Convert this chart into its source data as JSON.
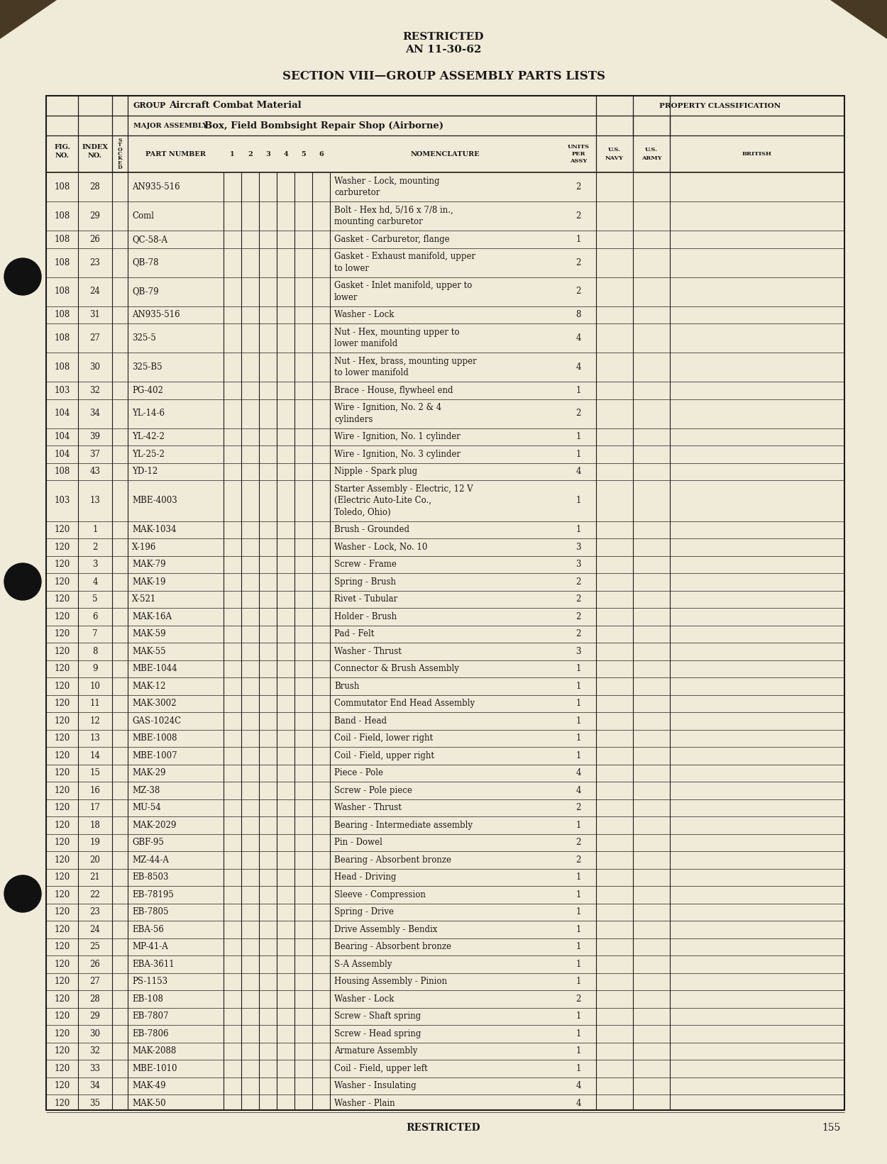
{
  "bg_color": "#f0ead8",
  "page_bg": "#d4c9a8",
  "title1": "RESTRICTED",
  "title2": "AN 11-30-62",
  "section_title": "SECTION VIII—GROUP ASSEMBLY PARTS LISTS",
  "group_label": "GROUP",
  "group_value": "Aircraft Combat Material",
  "major_assembly_label": "MAJOR ASSEMBLY",
  "major_assembly_value": "Box, Field Bombsight Repair Shop (Airborne)",
  "property_class_header": "PROPERTY CLASSIFICATION",
  "footer_text": "RESTRICTED",
  "page_number": "155",
  "rows": [
    [
      "108",
      "28",
      "AN935-516",
      [
        "Washer - Lock, mounting",
        "carburetor"
      ],
      "2"
    ],
    [
      "108",
      "29",
      "Coml",
      [
        "Bolt - Hex hd, 5/16 x 7/8 in.,",
        "mounting carburetor"
      ],
      "2"
    ],
    [
      "108",
      "26",
      "QC-58-A",
      [
        "Gasket - Carburetor, flange"
      ],
      "1"
    ],
    [
      "108",
      "23",
      "QB-78",
      [
        "Gasket - Exhaust manifold, upper",
        "to lower"
      ],
      "2"
    ],
    [
      "108",
      "24",
      "QB-79",
      [
        "Gasket - Inlet manifold, upper to",
        "lower"
      ],
      "2"
    ],
    [
      "108",
      "31",
      "AN935-516",
      [
        "Washer - Lock"
      ],
      "8"
    ],
    [
      "108",
      "27",
      "325-5",
      [
        "Nut - Hex, mounting upper to",
        "lower manifold"
      ],
      "4"
    ],
    [
      "108",
      "30",
      "325-B5",
      [
        "Nut - Hex, brass, mounting upper",
        "to lower manifold"
      ],
      "4"
    ],
    [
      "103",
      "32",
      "PG-402",
      [
        "Brace - House, flywheel end"
      ],
      "1"
    ],
    [
      "104",
      "34",
      "YL-14-6",
      [
        "Wire - Ignition, No. 2 & 4",
        "cylinders"
      ],
      "2"
    ],
    [
      "104",
      "39",
      "YL-42-2",
      [
        "Wire - Ignition, No. 1 cylinder"
      ],
      "1"
    ],
    [
      "104",
      "37",
      "YL-25-2",
      [
        "Wire - Ignition, No. 3 cylinder"
      ],
      "1"
    ],
    [
      "108",
      "43",
      "YD-12",
      [
        "Nipple - Spark plug"
      ],
      "4"
    ],
    [
      "103",
      "13",
      "MBE-4003",
      [
        "Starter Assembly - Electric, 12 V",
        "(Electric Auto-Lite Co.,",
        "Toledo, Ohio)"
      ],
      "1"
    ],
    [
      "120",
      "1",
      "MAK-1034",
      [
        "Brush - Grounded"
      ],
      "1"
    ],
    [
      "120",
      "2",
      "X-196",
      [
        "Washer - Lock, No. 10"
      ],
      "3"
    ],
    [
      "120",
      "3",
      "MAK-79",
      [
        "Screw - Frame"
      ],
      "3"
    ],
    [
      "120",
      "4",
      "MAK-19",
      [
        "Spring - Brush"
      ],
      "2"
    ],
    [
      "120",
      "5",
      "X-521",
      [
        "Rivet - Tubular"
      ],
      "2"
    ],
    [
      "120",
      "6",
      "MAK-16A",
      [
        "Holder - Brush"
      ],
      "2"
    ],
    [
      "120",
      "7",
      "MAK-59",
      [
        "Pad - Felt"
      ],
      "2"
    ],
    [
      "120",
      "8",
      "MAK-55",
      [
        "Washer - Thrust"
      ],
      "3"
    ],
    [
      "120",
      "9",
      "MBE-1044",
      [
        "Connector & Brush Assembly"
      ],
      "1"
    ],
    [
      "120",
      "10",
      "MAK-12",
      [
        "Brush"
      ],
      "1"
    ],
    [
      "120",
      "11",
      "MAK-3002",
      [
        "Commutator End Head Assembly"
      ],
      "1"
    ],
    [
      "120",
      "12",
      "GAS-1024C",
      [
        "Band - Head"
      ],
      "1"
    ],
    [
      "120",
      "13",
      "MBE-1008",
      [
        "Coil - Field, lower right"
      ],
      "1"
    ],
    [
      "120",
      "14",
      "MBE-1007",
      [
        "Coil - Field, upper right"
      ],
      "1"
    ],
    [
      "120",
      "15",
      "MAK-29",
      [
        "Piece - Pole"
      ],
      "4"
    ],
    [
      "120",
      "16",
      "MZ-38",
      [
        "Screw - Pole piece"
      ],
      "4"
    ],
    [
      "120",
      "17",
      "MU-54",
      [
        "Washer - Thrust"
      ],
      "2"
    ],
    [
      "120",
      "18",
      "MAK-2029",
      [
        "Bearing - Intermediate assembly"
      ],
      "1"
    ],
    [
      "120",
      "19",
      "GBF-95",
      [
        "Pin - Dowel"
      ],
      "2"
    ],
    [
      "120",
      "20",
      "MZ-44-A",
      [
        "Bearing - Absorbent bronze"
      ],
      "2"
    ],
    [
      "120",
      "21",
      "EB-8503",
      [
        "Head - Driving"
      ],
      "1"
    ],
    [
      "120",
      "22",
      "EB-78195",
      [
        "Sleeve - Compression"
      ],
      "1"
    ],
    [
      "120",
      "23",
      "EB-7805",
      [
        "Spring - Drive"
      ],
      "1"
    ],
    [
      "120",
      "24",
      "EBA-56",
      [
        "Drive Assembly - Bendix"
      ],
      "1"
    ],
    [
      "120",
      "25",
      "MP-41-A",
      [
        "Bearing - Absorbent bronze"
      ],
      "1"
    ],
    [
      "120",
      "26",
      "EBA-3611",
      [
        "S-A Assembly"
      ],
      "1"
    ],
    [
      "120",
      "27",
      "PS-1153",
      [
        "Housing Assembly - Pinion"
      ],
      "1"
    ],
    [
      "120",
      "28",
      "EB-108",
      [
        "Washer - Lock"
      ],
      "2"
    ],
    [
      "120",
      "29",
      "EB-7807",
      [
        "Screw - Shaft spring"
      ],
      "1"
    ],
    [
      "120",
      "30",
      "EB-7806",
      [
        "Screw - Head spring"
      ],
      "1"
    ],
    [
      "120",
      "32",
      "MAK-2088",
      [
        "Armature Assembly"
      ],
      "1"
    ],
    [
      "120",
      "33",
      "MBE-1010",
      [
        "Coil - Field, upper left"
      ],
      "1"
    ],
    [
      "120",
      "34",
      "MAK-49",
      [
        "Washer - Insulating"
      ],
      "4"
    ],
    [
      "120",
      "35",
      "MAK-50",
      [
        "Washer - Plain"
      ],
      "4"
    ]
  ]
}
